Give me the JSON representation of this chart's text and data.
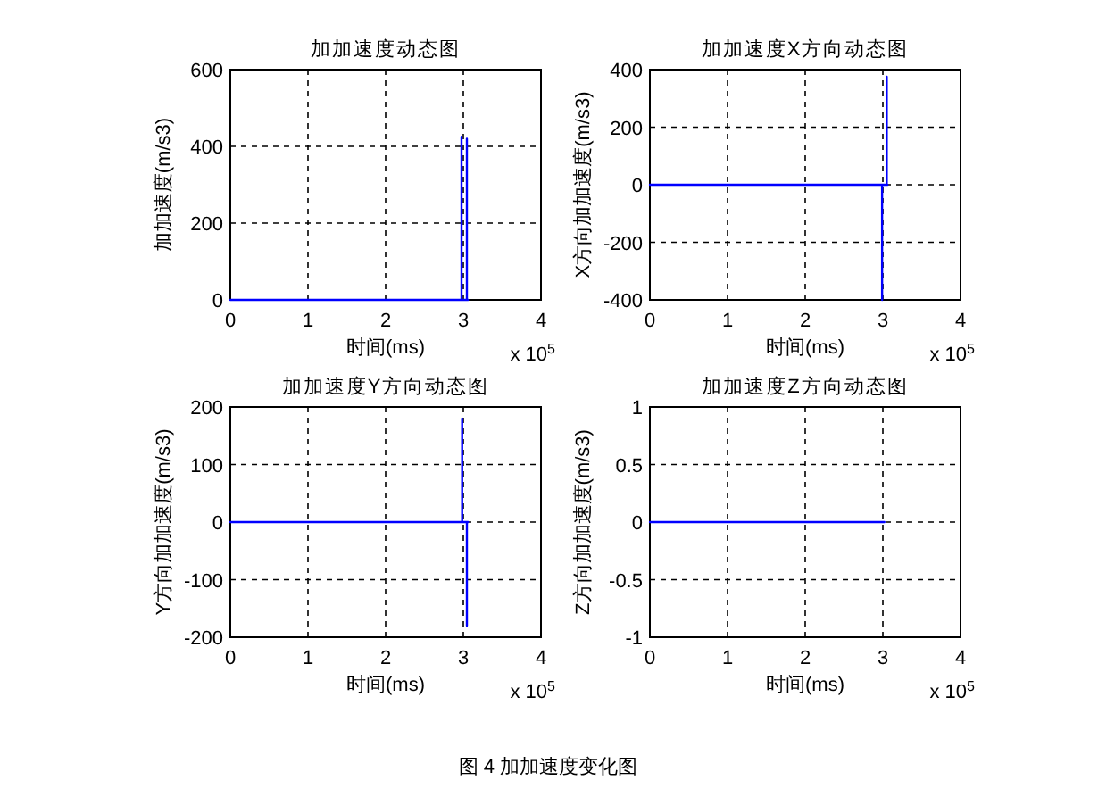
{
  "chart_data": [
    {
      "type": "line",
      "title": "加加速度动态图",
      "xlabel": "时间(ms)",
      "ylabel": "加加速度(m/s3)",
      "annotations": [
        "x 10$^{5}$"
      ],
      "x": [
        0,
        2.977,
        2.977,
        2.977,
        3.046,
        3.046,
        3.046,
        3.06
      ],
      "series": [
        {
          "color": "#0000ff",
          "values": [
            0,
            0,
            425,
            0,
            0,
            420,
            0,
            0
          ]
        }
      ],
      "xlim": [
        0,
        4
      ],
      "xticks": [
        0,
        1,
        2,
        3,
        4
      ],
      "ylim": [
        0,
        600
      ],
      "yticks": [
        0,
        200,
        400,
        600
      ],
      "grid": true
    },
    {
      "type": "line",
      "title": "加加速度X方向动态图",
      "xlabel": "时间(ms)",
      "ylabel": "X方向加加速度(m/s3)",
      "annotations": [
        "x 10$^{5}$"
      ],
      "x": [
        0,
        2.99,
        2.99,
        2.99,
        3.05,
        3.05,
        3.05,
        3.06
      ],
      "series": [
        {
          "color": "#0000ff",
          "values": [
            0,
            0,
            -400,
            0,
            0,
            375,
            0,
            0
          ]
        }
      ],
      "xlim": [
        0,
        4
      ],
      "xticks": [
        0,
        1,
        2,
        3,
        4
      ],
      "ylim": [
        -400,
        400
      ],
      "yticks": [
        -400,
        -200,
        0,
        200,
        400
      ],
      "grid": true
    },
    {
      "type": "line",
      "title": "加加速度Y方向动态图",
      "xlabel": "时间(ms)",
      "ylabel": "Y方向加加速度(m/s3)",
      "annotations": [
        "x 10$^{5}$"
      ],
      "x": [
        0,
        2.985,
        2.985,
        2.985,
        3.046,
        3.046,
        3.046,
        3.06
      ],
      "series": [
        {
          "color": "#0000ff",
          "values": [
            0,
            0,
            180,
            0,
            0,
            -180,
            0,
            0
          ]
        }
      ],
      "xlim": [
        0,
        4
      ],
      "xticks": [
        0,
        1,
        2,
        3,
        4
      ],
      "ylim": [
        -200,
        200
      ],
      "yticks": [
        -200,
        -100,
        0,
        100,
        200
      ],
      "grid": true
    },
    {
      "type": "line",
      "title": "加加速度Z方向动态图",
      "xlabel": "时间(ms)",
      "ylabel": "Z方向加加速度(m/s3)",
      "annotations": [
        "x 10$^{5}$",
        "图 4  加加速度变化图"
      ],
      "x": [
        0,
        3.02
      ],
      "series": [
        {
          "color": "#0000ff",
          "values": [
            0,
            0
          ]
        }
      ],
      "xlim": [
        0,
        4
      ],
      "xticks": [
        0,
        1,
        2,
        3,
        4
      ],
      "ylim": [
        -1,
        1
      ],
      "yticks": [
        -1,
        -0.5,
        0,
        0.5,
        1
      ],
      "grid": true
    }
  ]
}
